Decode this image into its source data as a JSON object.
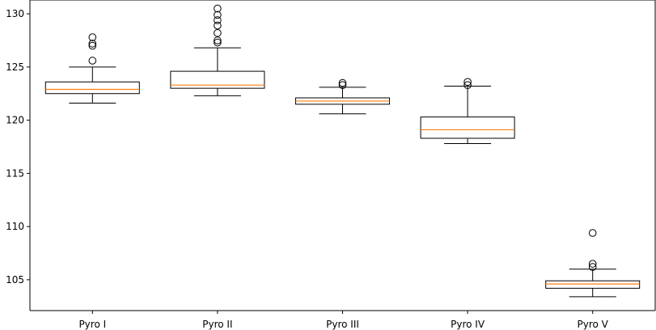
{
  "chart_data": {
    "type": "boxplot",
    "title": "",
    "xlabel": "",
    "ylabel": "",
    "ylim": [
      102.1,
      131.3
    ],
    "yticks": [
      105,
      110,
      115,
      120,
      125,
      130
    ],
    "ytick_labels": [
      "105",
      "110",
      "115",
      "120",
      "125",
      "130"
    ],
    "grid": false,
    "colors": {
      "box": "#000000",
      "median": "#ff7f0e",
      "outlier": "#000000",
      "axis": "#000000"
    },
    "categories": [
      "Pyro I",
      "Pyro II",
      "Pyro III",
      "Pyro IV",
      "Pyro V"
    ],
    "boxes": [
      {
        "label": "Pyro I",
        "whisker_low": 121.6,
        "q1": 122.5,
        "median": 122.9,
        "q3": 123.6,
        "whisker_high": 125.0,
        "outliers": [
          125.6,
          127.0,
          127.2,
          127.8
        ]
      },
      {
        "label": "Pyro II",
        "whisker_low": 122.3,
        "q1": 123.0,
        "median": 123.3,
        "q3": 124.6,
        "whisker_high": 126.8,
        "outliers": [
          127.3,
          127.5,
          128.2,
          128.9,
          129.4,
          129.9,
          130.5
        ]
      },
      {
        "label": "Pyro III",
        "whisker_low": 120.6,
        "q1": 121.5,
        "median": 121.8,
        "q3": 122.1,
        "whisker_high": 123.1,
        "outliers": [
          123.3,
          123.5
        ]
      },
      {
        "label": "Pyro IV",
        "whisker_low": 117.8,
        "q1": 118.3,
        "median": 119.1,
        "q3": 120.3,
        "whisker_high": 123.2,
        "outliers": [
          123.3,
          123.6
        ]
      },
      {
        "label": "Pyro V",
        "whisker_low": 103.4,
        "q1": 104.2,
        "median": 104.6,
        "q3": 104.9,
        "whisker_high": 106.0,
        "outliers": [
          106.2,
          106.5,
          109.4
        ]
      }
    ]
  }
}
